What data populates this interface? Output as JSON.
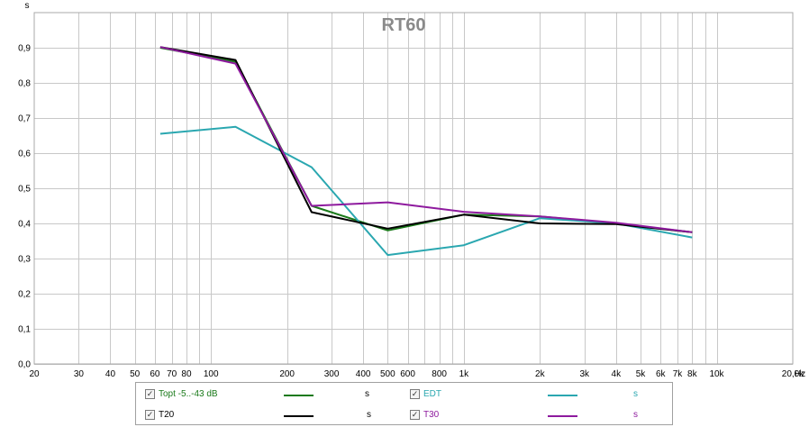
{
  "chart_data": {
    "type": "line",
    "title": "RT60",
    "ylabel": "s",
    "xlabel": "Hz",
    "x_scale": "log",
    "xlim": [
      20,
      20000
    ],
    "ylim": [
      0,
      1.0
    ],
    "grid": true,
    "y_ticks": [
      {
        "value": 0.0,
        "label": "0,0"
      },
      {
        "value": 0.1,
        "label": "0,1"
      },
      {
        "value": 0.2,
        "label": "0,2"
      },
      {
        "value": 0.3,
        "label": "0,3"
      },
      {
        "value": 0.4,
        "label": "0,4"
      },
      {
        "value": 0.5,
        "label": "0,5"
      },
      {
        "value": 0.6,
        "label": "0,6"
      },
      {
        "value": 0.7,
        "label": "0,7"
      },
      {
        "value": 0.8,
        "label": "0,8"
      },
      {
        "value": 0.9,
        "label": "0,9"
      }
    ],
    "x_ticks": [
      {
        "value": 20,
        "label": "20"
      },
      {
        "value": 30,
        "label": "30"
      },
      {
        "value": 40,
        "label": "40"
      },
      {
        "value": 50,
        "label": "50"
      },
      {
        "value": 60,
        "label": "60"
      },
      {
        "value": 70,
        "label": "70"
      },
      {
        "value": 80,
        "label": "80"
      },
      {
        "value": 100,
        "label": "100"
      },
      {
        "value": 200,
        "label": "200"
      },
      {
        "value": 300,
        "label": "300"
      },
      {
        "value": 400,
        "label": "400"
      },
      {
        "value": 500,
        "label": "500"
      },
      {
        "value": 600,
        "label": "600"
      },
      {
        "value": 800,
        "label": "800"
      },
      {
        "value": 1000,
        "label": "1k"
      },
      {
        "value": 2000,
        "label": "2k"
      },
      {
        "value": 3000,
        "label": "3k"
      },
      {
        "value": 4000,
        "label": "4k"
      },
      {
        "value": 5000,
        "label": "5k"
      },
      {
        "value": 6000,
        "label": "6k"
      },
      {
        "value": 7000,
        "label": "7k"
      },
      {
        "value": 8000,
        "label": "8k"
      },
      {
        "value": 10000,
        "label": "10k"
      },
      {
        "value": 20000,
        "label": "20,0k"
      }
    ],
    "series": [
      {
        "name": "Topt -5..-43 dB",
        "color": "#1a7a1a",
        "x": [
          63,
          125,
          250,
          500,
          1000,
          2000,
          4000,
          8000
        ],
        "y": [
          0.9,
          0.86,
          0.45,
          0.38,
          0.425,
          0.42,
          0.4,
          0.375
        ]
      },
      {
        "name": "EDT",
        "color": "#2aa7b0",
        "x": [
          63,
          125,
          250,
          500,
          1000,
          2000,
          4000,
          8000
        ],
        "y": [
          0.655,
          0.675,
          0.56,
          0.31,
          0.338,
          0.415,
          0.4,
          0.36
        ]
      },
      {
        "name": "T20",
        "color": "#000000",
        "x": [
          63,
          125,
          250,
          500,
          1000,
          2000,
          4000,
          8000
        ],
        "y": [
          0.902,
          0.865,
          0.432,
          0.385,
          0.425,
          0.4,
          0.398,
          0.375
        ]
      },
      {
        "name": "T30",
        "color": "#8e1a9e",
        "x": [
          63,
          125,
          250,
          500,
          1000,
          2000,
          4000,
          8000
        ],
        "y": [
          0.902,
          0.855,
          0.45,
          0.46,
          0.433,
          0.42,
          0.402,
          0.375
        ]
      }
    ]
  },
  "legend": {
    "unit": "s",
    "entries": [
      {
        "label": "Topt -5..-43 dB",
        "checked": true,
        "color": "#1a7a1a"
      },
      {
        "label": "EDT",
        "checked": true,
        "color": "#2aa7b0"
      },
      {
        "label": "T20",
        "checked": true,
        "color": "#000000"
      },
      {
        "label": "T30",
        "checked": true,
        "color": "#8e1a9e"
      }
    ]
  }
}
